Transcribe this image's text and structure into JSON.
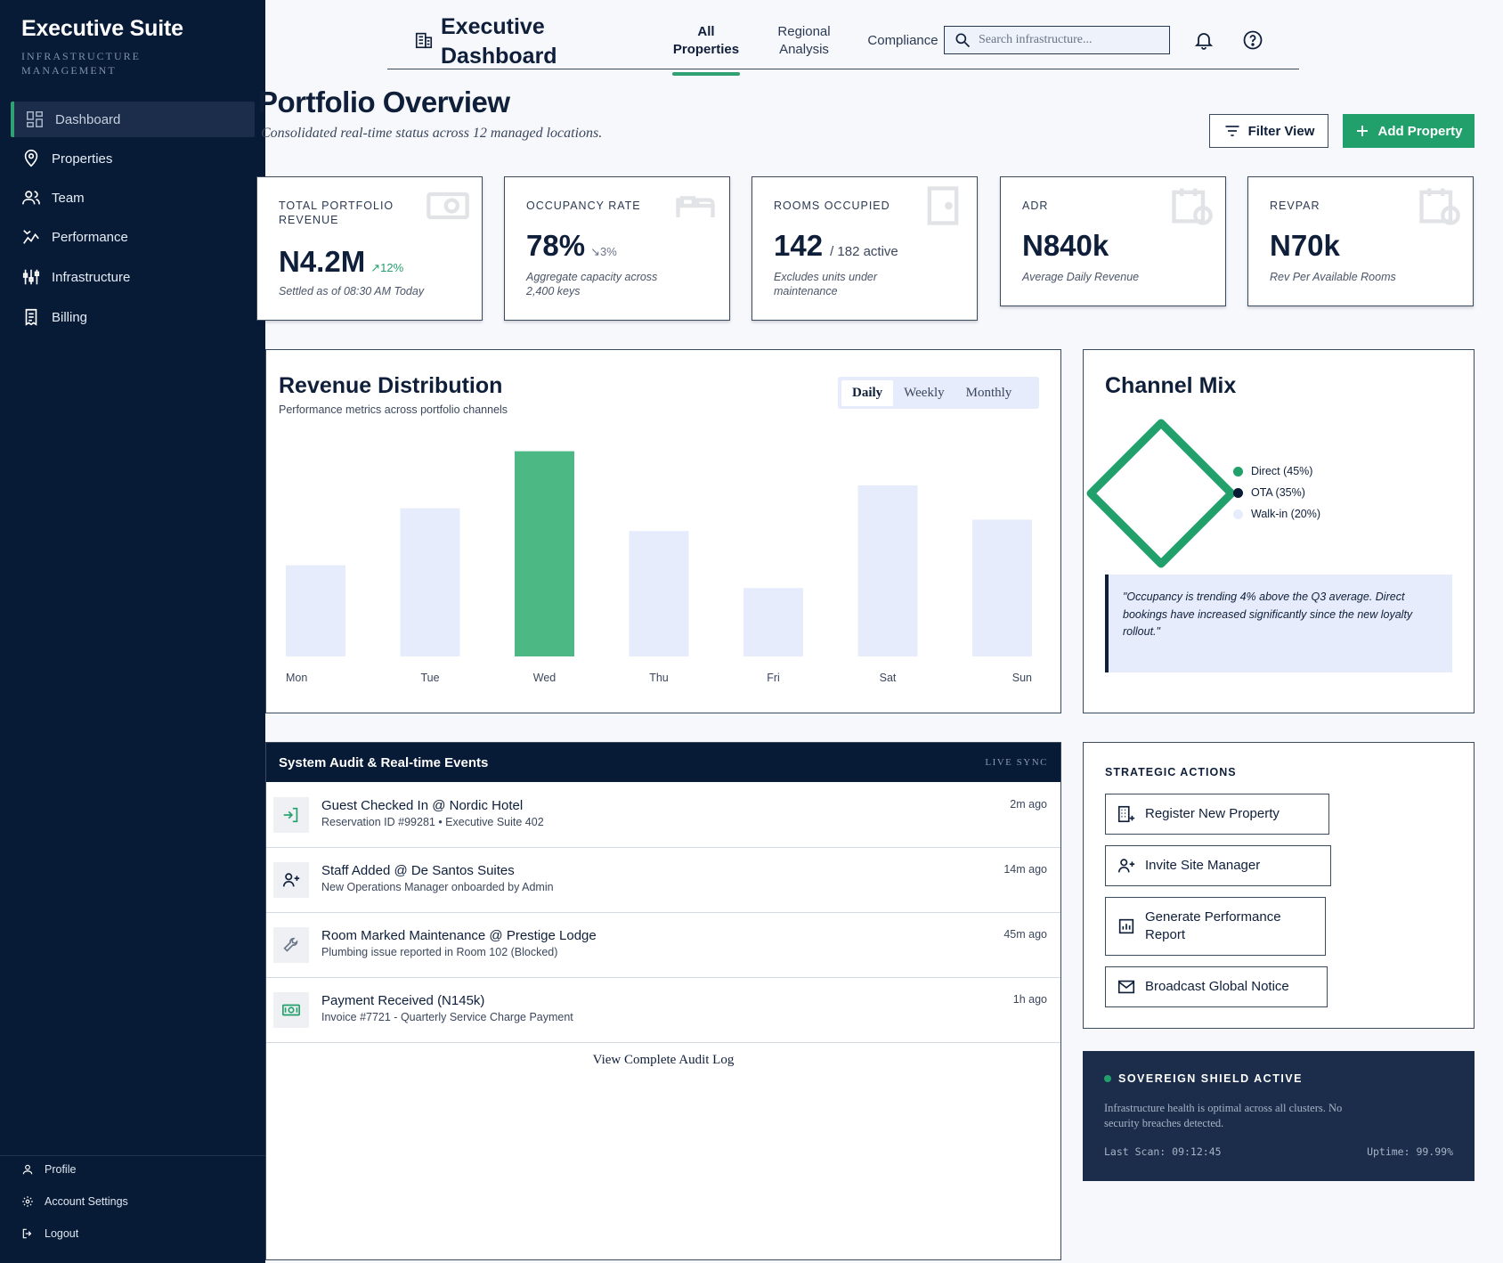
{
  "sidebar": {
    "title": "Executive Suite",
    "subtitle": "INFRASTRUCTURE MANAGEMENT",
    "nav": [
      {
        "label": "Dashboard",
        "icon": "dashboard-icon"
      },
      {
        "label": "Properties",
        "icon": "map-pin-icon"
      },
      {
        "label": "Team",
        "icon": "users-icon"
      },
      {
        "label": "Performance",
        "icon": "chart-line-icon"
      },
      {
        "label": "Infrastructure",
        "icon": "sliders-icon"
      },
      {
        "label": "Billing",
        "icon": "receipt-icon"
      }
    ],
    "footer": [
      {
        "label": "Profile",
        "icon": "user-icon"
      },
      {
        "label": "Account Settings",
        "icon": "gear-icon"
      },
      {
        "label": "Logout",
        "icon": "logout-icon"
      }
    ]
  },
  "header": {
    "title": "Executive Dashboard",
    "tabs": [
      {
        "label": "All Properties"
      },
      {
        "label": "Regional Analysis"
      },
      {
        "label": "Compliance"
      }
    ],
    "search_placeholder": "Search infrastructure..."
  },
  "page": {
    "title": "Portfolio Overview",
    "subtitle": "Consolidated real-time status across 12 managed locations.",
    "filter_label": "Filter View",
    "add_label": "Add Property"
  },
  "stats": [
    {
      "label": "TOTAL PORTFOLIO REVENUE",
      "value": "N4.2M",
      "trend": "12%",
      "note": "Settled as of 08:30 AM Today"
    },
    {
      "label": "OCCUPANCY RATE",
      "value": "78%",
      "trend": "3%",
      "note": "Aggregate capacity across 2,400 keys"
    },
    {
      "label": "ROOMS OCCUPIED",
      "value": "142",
      "suffix": "/ 182 active",
      "note": "Excludes units under maintenance"
    },
    {
      "label": "ADR",
      "value": "N840k",
      "note": "Average Daily Revenue"
    },
    {
      "label": "REVPAR",
      "value": "N70k",
      "note": "Rev Per Available Rooms"
    }
  ],
  "revenue": {
    "title": "Revenue Distribution",
    "subtitle": "Performance metrics across portfolio channels",
    "ranges": [
      "Daily",
      "Weekly",
      "Monthly"
    ],
    "active_range": "Daily"
  },
  "chart_data": {
    "type": "bar",
    "title": "Revenue Distribution",
    "categories": [
      "Mon",
      "Tue",
      "Wed",
      "Thu",
      "Fri",
      "Sat",
      "Sun"
    ],
    "values": [
      40,
      65,
      90,
      55,
      30,
      75,
      60
    ],
    "highlight": "Wed",
    "ylim": [
      0,
      100
    ],
    "grid": false,
    "colors": {
      "bar": "#e6ecfb",
      "highlight": "#4cb883"
    }
  },
  "channel": {
    "title": "Channel Mix",
    "legend": [
      {
        "label": "Direct (45%)",
        "color": "#22a06b"
      },
      {
        "label": "OTA (35%)",
        "color": "#071a36"
      },
      {
        "label": "Walk-in (20%)",
        "color": "#e6ecfb"
      }
    ],
    "quote": "\"Occupancy is trending 4% above the Q3 average. Direct bookings have increased significantly since the new loyalty rollout.\""
  },
  "audit": {
    "title": "System Audit & Real-time Events",
    "live": "LIVE SYNC",
    "events": [
      {
        "title": "Guest Checked In @ Nordic Hotel",
        "sub": "Reservation ID #99281 • Executive Suite 402",
        "time": "2m ago",
        "icon": "login-icon"
      },
      {
        "title": "Staff Added @ De Santos Suites",
        "sub": "New Operations Manager onboarded by Admin",
        "time": "14m ago",
        "icon": "user-plus-icon"
      },
      {
        "title": "Room Marked Maintenance @ Prestige Lodge",
        "sub": "Plumbing issue reported in Room 102 (Blocked)",
        "time": "45m ago",
        "icon": "wrench-icon"
      },
      {
        "title": "Payment Received (N145k)",
        "sub": "Invoice #7721 - Quarterly Service Charge Payment",
        "time": "1h ago",
        "icon": "cash-icon"
      }
    ],
    "link": "View Complete Audit Log"
  },
  "strategic": {
    "title": "STRATEGIC ACTIONS",
    "actions": [
      {
        "label": "Register New Property",
        "icon": "building-add-icon"
      },
      {
        "label": "Invite Site Manager",
        "icon": "user-plus-icon"
      },
      {
        "label": "Generate Performance Report",
        "icon": "report-icon"
      },
      {
        "label": "Broadcast Global Notice",
        "icon": "mail-icon"
      }
    ]
  },
  "shield": {
    "title": "SOVEREIGN SHIELD ACTIVE",
    "desc": "Infrastructure health is optimal across all clusters. No security breaches detected.",
    "scan": "Last Scan: 09:12:45",
    "uptime": "Uptime: 99.99%"
  },
  "colors": {
    "accent": "#22a06b",
    "navy": "#071a36"
  }
}
